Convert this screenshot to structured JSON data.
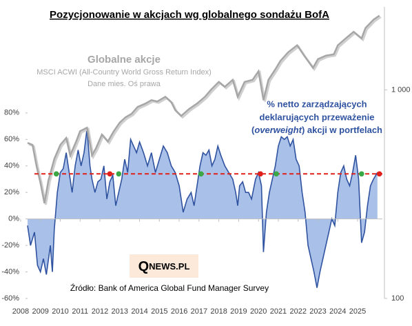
{
  "chart_data": {
    "type": "area-line",
    "title": "Pozycjonowanie w akcjach  wg globalnego sondażu BofA",
    "line_label": "Globalne akcje",
    "line_sublabels": [
      "MSCI ACWI (All-Country World Gross Return Index)",
      "Dane mies. Oś prawa"
    ],
    "annotation": [
      "% netto zarządzających",
      "deklarujących przeważenie"
    ],
    "annotation_line3": [
      "(",
      "overweight",
      ") akcji w portfelach"
    ],
    "source": "Źródło: Bank of America Global Fund Manager Survey",
    "logo": [
      "Q",
      "NEWS.PL"
    ],
    "xlim": [
      2008.35,
      2026.25
    ],
    "xticks": [
      2008,
      2009,
      2010,
      2011,
      2012,
      2013,
      2014,
      2015,
      2016,
      2017,
      2018,
      2019,
      2020,
      2021,
      2022,
      2023,
      2024,
      2025
    ],
    "ylim": [
      -60,
      160
    ],
    "yticks": [
      {
        "value": -60,
        "label": "-60%"
      },
      {
        "value": -40,
        "label": "-40%"
      },
      {
        "value": -20,
        "label": "-20%"
      },
      {
        "value": 0,
        "label": "0%"
      },
      {
        "value": 20,
        "label": "20%"
      },
      {
        "value": 40,
        "label": "40%"
      },
      {
        "value": 60,
        "label": "60%"
      },
      {
        "value": 80,
        "label": "80%"
      }
    ],
    "y2lim": [
      100,
      2500
    ],
    "y2scale": "log",
    "y2ticks": [
      100,
      {
        "value": 1000,
        "label": "1 000"
      }
    ],
    "threshold": 34,
    "threshold_color": "#e0201b",
    "series": [
      {
        "color": "#2f52a0",
        "fill": "#a9c0e8",
        "x": [
          2008.35,
          2008.5,
          2008.7,
          2008.85,
          2009.0,
          2009.15,
          2009.3,
          2009.5,
          2009.6,
          2009.7,
          2009.85,
          2010.0,
          2010.15,
          2010.3,
          2010.45,
          2010.6,
          2010.75,
          2010.9,
          2011.05,
          2011.2,
          2011.35,
          2011.5,
          2011.6,
          2011.75,
          2011.9,
          2012.05,
          2012.2,
          2012.35,
          2012.5,
          2012.65,
          2012.8,
          2012.95,
          2013.1,
          2013.25,
          2013.4,
          2013.55,
          2013.7,
          2013.85,
          2014.0,
          2014.2,
          2014.4,
          2014.6,
          2014.8,
          2015.0,
          2015.2,
          2015.4,
          2015.6,
          2015.8,
          2016.0,
          2016.2,
          2016.4,
          2016.6,
          2016.75,
          2016.9,
          2017.05,
          2017.2,
          2017.35,
          2017.5,
          2017.65,
          2017.8,
          2017.95,
          2018.1,
          2018.3,
          2018.5,
          2018.7,
          2018.85,
          2018.95,
          2019.05,
          2019.2,
          2019.35,
          2019.5,
          2019.65,
          2019.85,
          2020.0,
          2020.15,
          2020.25,
          2020.4,
          2020.55,
          2020.7,
          2020.85,
          2021.0,
          2021.15,
          2021.3,
          2021.45,
          2021.6,
          2021.75,
          2021.9,
          2022.05,
          2022.2,
          2022.35,
          2022.5,
          2022.65,
          2022.8,
          2022.95,
          2023.1,
          2023.25,
          2023.4,
          2023.55,
          2023.7,
          2023.85,
          2024.0,
          2024.15,
          2024.3,
          2024.45,
          2024.6,
          2024.75,
          2024.9,
          2025.05,
          2025.2,
          2025.35,
          2025.5,
          2025.65,
          2025.8,
          2026.0
        ],
        "values": [
          -5,
          -20,
          -10,
          -35,
          -40,
          -30,
          -42,
          -20,
          -40,
          -8,
          20,
          35,
          38,
          50,
          35,
          20,
          40,
          52,
          40,
          50,
          68,
          40,
          30,
          20,
          28,
          30,
          40,
          15,
          28,
          33,
          10,
          20,
          30,
          45,
          35,
          60,
          55,
          50,
          58,
          50,
          40,
          50,
          35,
          45,
          55,
          50,
          40,
          35,
          25,
          5,
          15,
          20,
          10,
          25,
          40,
          50,
          48,
          52,
          40,
          45,
          55,
          48,
          40,
          35,
          30,
          20,
          10,
          25,
          28,
          20,
          20,
          15,
          30,
          35,
          25,
          -25,
          5,
          20,
          30,
          40,
          55,
          62,
          60,
          62,
          55,
          60,
          45,
          40,
          20,
          5,
          -20,
          -30,
          -40,
          -52,
          -40,
          -30,
          -20,
          -10,
          0,
          -5,
          20,
          35,
          40,
          30,
          25,
          35,
          48,
          30,
          -18,
          -10,
          10,
          25,
          30,
          35
        ]
      },
      {
        "color": "#a6a6a6",
        "axis": "y2",
        "x": [
          2008.35,
          2008.6,
          2008.8,
          2009.0,
          2009.2,
          2009.4,
          2009.7,
          2010.0,
          2010.3,
          2010.5,
          2010.8,
          2011.0,
          2011.35,
          2011.6,
          2011.8,
          2012.1,
          2012.4,
          2012.7,
          2013.0,
          2013.3,
          2013.6,
          2013.9,
          2014.3,
          2014.6,
          2014.9,
          2015.3,
          2015.6,
          2015.8,
          2016.1,
          2016.5,
          2016.9,
          2017.3,
          2017.6,
          2018.0,
          2018.3,
          2018.7,
          2018.95,
          2019.3,
          2019.7,
          2020.0,
          2020.25,
          2020.5,
          2020.85,
          2021.1,
          2021.5,
          2021.95,
          2022.3,
          2022.75,
          2023.0,
          2023.4,
          2023.8,
          2024.0,
          2024.4,
          2024.8,
          2025.2,
          2025.4,
          2025.8,
          2026.1
        ],
        "values": [
          557,
          545,
          433,
          358,
          286,
          367,
          467,
          545,
          588,
          485,
          565,
          634,
          659,
          485,
          525,
          611,
          565,
          634,
          697,
          740,
          768,
          828,
          860,
          893,
          880,
          927,
          874,
          800,
          750,
          810,
          860,
          927,
          1000,
          1092,
          1035,
          1118,
          927,
          1092,
          1118,
          1228,
          893,
          1118,
          1255,
          1375,
          1515,
          1636,
          1460,
          1275,
          1405,
          1460,
          1482,
          1636,
          1765,
          1900,
          1765,
          1980,
          2170,
          2270
        ]
      }
    ],
    "buy_points": {
      "color": "#3aa845",
      "x": [
        2009.8,
        2012.95,
        2017.1,
        2020.9,
        2025.2
      ],
      "values": [
        34,
        34,
        34,
        34,
        34
      ]
    },
    "sell_points": {
      "color": "#e0201b",
      "x": [
        2012.5,
        2020.1,
        2026.1
      ],
      "values": [
        34,
        34,
        34
      ]
    }
  }
}
